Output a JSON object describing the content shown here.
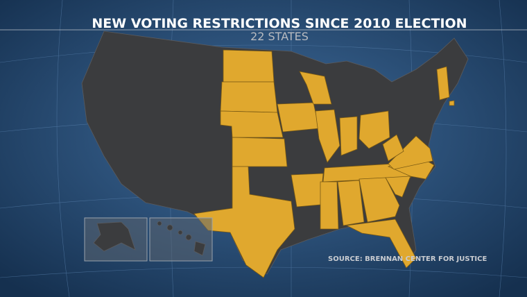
{
  "title": "NEW VOTING RESTRICTIONS SINCE 2010 ELECTION",
  "subtitle": "22 STATES",
  "source": "SOURCE: BRENNAN CENTER FOR JUSTICE"
}
